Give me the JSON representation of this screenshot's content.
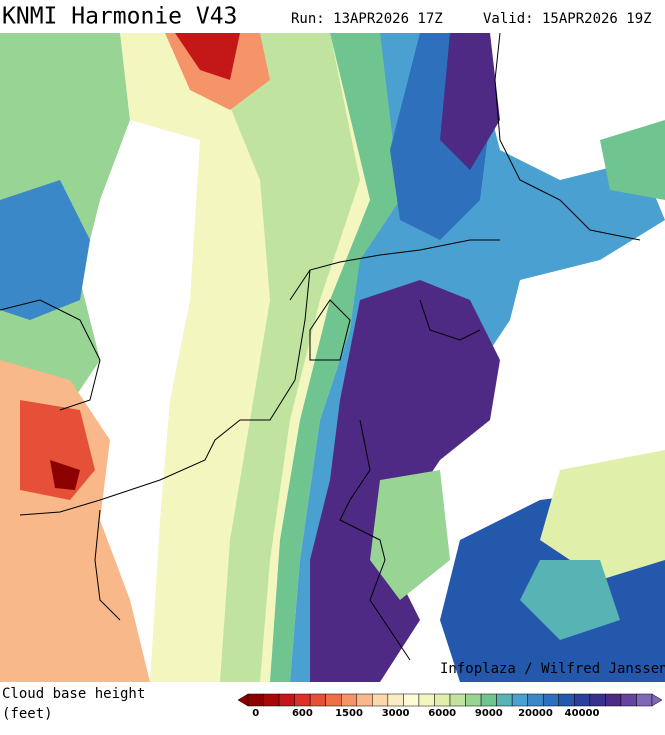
{
  "header": {
    "title": "KNMI Harmonie V43",
    "run": "Run: 13APR2026 17Z",
    "valid": "Valid: 15APR2026 19Z"
  },
  "credit": "Infoplaza / Wilfred Janssen",
  "legend": {
    "label": "Cloud base height",
    "unit": "(feet)",
    "colors": [
      "#8b0000",
      "#a80808",
      "#c41818",
      "#dc3028",
      "#e65038",
      "#ee7048",
      "#f49468",
      "#f8b88a",
      "#fcd8aa",
      "#fcecc4",
      "#fffad8",
      "#f4f6c0",
      "#e0f0aa",
      "#c0e4a0",
      "#98d494",
      "#70c490",
      "#58b4b4",
      "#4aa0d0",
      "#3a88c8",
      "#2e70bc",
      "#2458ac",
      "#2a409c",
      "#38308e",
      "#4e2a84",
      "#6444a0",
      "#8068b8"
    ],
    "ticks": [
      "0",
      "600",
      "1500",
      "3000",
      "6000",
      "9000",
      "20000",
      "40000"
    ]
  }
}
